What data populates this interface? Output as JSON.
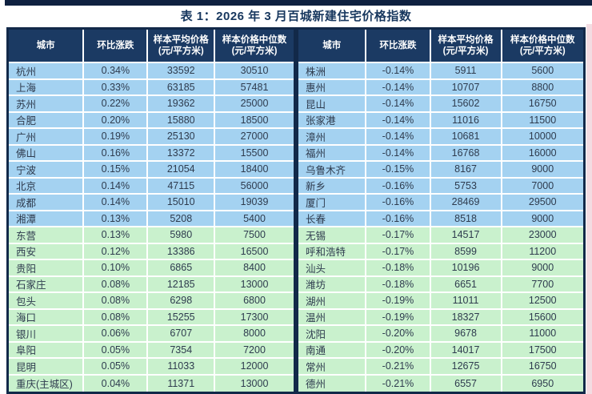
{
  "page": {
    "title": "表 1：2026 年 3 月百城新建住宅价格指数"
  },
  "colors": {
    "top_bar": "#0f2140",
    "border": "#122949",
    "header_bg": "#1b3a63",
    "row_blue": "#a4d2f1",
    "row_green": "#c9f1cd",
    "title_text": "#17375e",
    "cell_text": "#2e3b4e",
    "right_strip": "#f3dce2"
  },
  "columns": [
    {
      "lines": [
        "城市"
      ]
    },
    {
      "lines": [
        "环比涨跌"
      ]
    },
    {
      "lines": [
        "样本平均价格",
        "(元/平方米)"
      ]
    },
    {
      "lines": [
        "样本价格中位数",
        "(元/平方米)"
      ]
    }
  ],
  "row_groups": {
    "blue_rows": 10,
    "green_rows": 10
  },
  "tables": [
    {
      "name": "left",
      "rows": [
        [
          "杭州",
          "0.34%",
          "33592",
          "30510"
        ],
        [
          "上海",
          "0.33%",
          "63185",
          "57481"
        ],
        [
          "苏州",
          "0.22%",
          "19362",
          "25000"
        ],
        [
          "合肥",
          "0.20%",
          "15880",
          "18500"
        ],
        [
          "广州",
          "0.19%",
          "25130",
          "27000"
        ],
        [
          "佛山",
          "0.16%",
          "13372",
          "15500"
        ],
        [
          "宁波",
          "0.15%",
          "21054",
          "18400"
        ],
        [
          "北京",
          "0.14%",
          "47115",
          "56000"
        ],
        [
          "成都",
          "0.14%",
          "15010",
          "19039"
        ],
        [
          "湘潭",
          "0.13%",
          "5208",
          "5400"
        ],
        [
          "东营",
          "0.13%",
          "5980",
          "7500"
        ],
        [
          "西安",
          "0.12%",
          "13386",
          "16500"
        ],
        [
          "贵阳",
          "0.10%",
          "6865",
          "8400"
        ],
        [
          "石家庄",
          "0.08%",
          "12185",
          "13000"
        ],
        [
          "包头",
          "0.08%",
          "6298",
          "6800"
        ],
        [
          "海口",
          "0.08%",
          "15255",
          "17300"
        ],
        [
          "银川",
          "0.06%",
          "6707",
          "8000"
        ],
        [
          "阜阳",
          "0.05%",
          "7354",
          "7200"
        ],
        [
          "昆明",
          "0.05%",
          "11033",
          "12000"
        ],
        [
          "重庆(主城区)",
          "0.04%",
          "11371",
          "13000"
        ]
      ]
    },
    {
      "name": "right",
      "rows": [
        [
          "株洲",
          "-0.14%",
          "5911",
          "5600"
        ],
        [
          "惠州",
          "-0.14%",
          "10707",
          "8800"
        ],
        [
          "昆山",
          "-0.14%",
          "15602",
          "16750"
        ],
        [
          "张家港",
          "-0.14%",
          "11016",
          "11500"
        ],
        [
          "漳州",
          "-0.14%",
          "10681",
          "10000"
        ],
        [
          "福州",
          "-0.14%",
          "16768",
          "16000"
        ],
        [
          "乌鲁木齐",
          "-0.15%",
          "8167",
          "9000"
        ],
        [
          "新乡",
          "-0.16%",
          "5753",
          "7000"
        ],
        [
          "厦门",
          "-0.16%",
          "28469",
          "29500"
        ],
        [
          "长春",
          "-0.16%",
          "8518",
          "9000"
        ],
        [
          "无锡",
          "-0.17%",
          "14517",
          "23000"
        ],
        [
          "呼和浩特",
          "-0.17%",
          "8599",
          "11200"
        ],
        [
          "汕头",
          "-0.18%",
          "10196",
          "9000"
        ],
        [
          "潍坊",
          "-0.18%",
          "6651",
          "7700"
        ],
        [
          "湖州",
          "-0.19%",
          "11011",
          "12500"
        ],
        [
          "温州",
          "-0.19%",
          "18327",
          "15600"
        ],
        [
          "沈阳",
          "-0.20%",
          "9678",
          "11000"
        ],
        [
          "南通",
          "-0.20%",
          "14017",
          "17500"
        ],
        [
          "常州",
          "-0.21%",
          "12675",
          "16750"
        ],
        [
          "德州",
          "-0.21%",
          "6557",
          "6950"
        ]
      ]
    }
  ]
}
